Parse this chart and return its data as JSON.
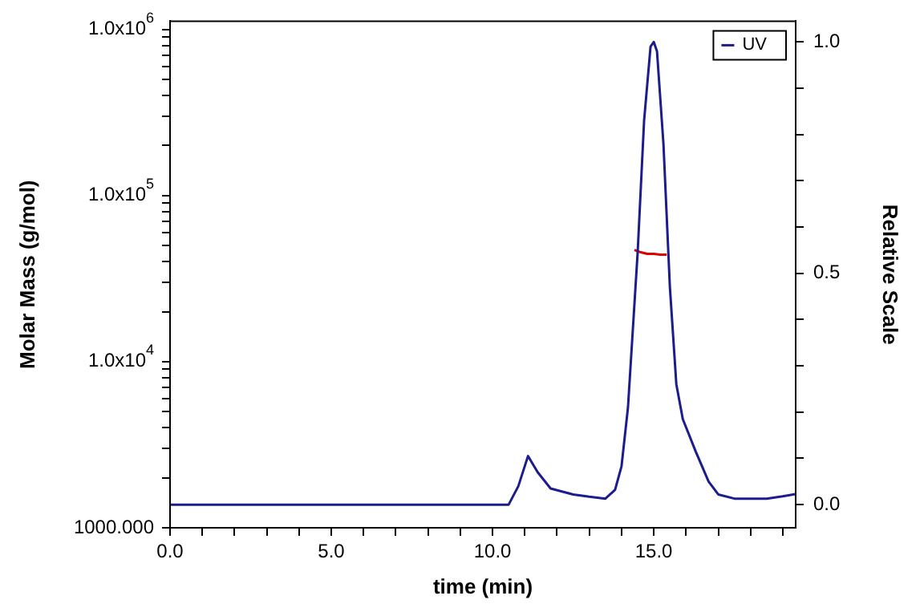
{
  "chart_data": {
    "type": "line",
    "xlabel": "time (min)",
    "ylabel": "Molar Mass (g/mol)",
    "y2label": "Relative Scale",
    "log": "y",
    "legend": "top right",
    "marker": "none",
    "grid": false,
    "line_style": "solid",
    "xlim": [
      0,
      19.4
    ],
    "xticks": [
      {
        "value": 0,
        "label": "0.0"
      },
      {
        "value": 1,
        "label": null
      },
      {
        "value": 2,
        "label": null
      },
      {
        "value": 3,
        "label": null
      },
      {
        "value": 4,
        "label": null
      },
      {
        "value": 5,
        "label": "5.0"
      },
      {
        "value": 6,
        "label": null
      },
      {
        "value": 7,
        "label": null
      },
      {
        "value": 8,
        "label": null
      },
      {
        "value": 9,
        "label": null
      },
      {
        "value": 10,
        "label": "10.0"
      },
      {
        "value": 11,
        "label": null
      },
      {
        "value": 12,
        "label": null
      },
      {
        "value": 13,
        "label": null
      },
      {
        "value": 14,
        "label": null
      },
      {
        "value": 15,
        "label": "15.0"
      },
      {
        "value": 16,
        "label": null
      },
      {
        "value": 17,
        "label": null
      },
      {
        "value": 18,
        "label": null
      },
      {
        "value": 19,
        "label": null
      }
    ],
    "ylim": [
      1000,
      1120000
    ],
    "yticks": [
      {
        "value": 1000,
        "label": "1000.000"
      },
      {
        "value": 2000,
        "label": null
      },
      {
        "value": 3000,
        "label": null
      },
      {
        "value": 4000,
        "label": null
      },
      {
        "value": 5000,
        "label": null
      },
      {
        "value": 6000,
        "label": null
      },
      {
        "value": 7000,
        "label": null
      },
      {
        "value": 8000,
        "label": null
      },
      {
        "value": 9000,
        "label": null
      },
      {
        "value": 10000,
        "label": "1.0x10$^{4}$"
      },
      {
        "value": 20000,
        "label": null
      },
      {
        "value": 30000,
        "label": null
      },
      {
        "value": 40000,
        "label": null
      },
      {
        "value": 50000,
        "label": null
      },
      {
        "value": 60000,
        "label": null
      },
      {
        "value": 70000,
        "label": null
      },
      {
        "value": 80000,
        "label": null
      },
      {
        "value": 90000,
        "label": null
      },
      {
        "value": 100000,
        "label": "1.0x10$^{5}$"
      },
      {
        "value": 200000,
        "label": null
      },
      {
        "value": 300000,
        "label": null
      },
      {
        "value": 400000,
        "label": null
      },
      {
        "value": 500000,
        "label": null
      },
      {
        "value": 600000,
        "label": null
      },
      {
        "value": 700000,
        "label": null
      },
      {
        "value": 800000,
        "label": null
      },
      {
        "value": 900000,
        "label": null
      },
      {
        "value": 1000000,
        "label": "1.0x10$^{6}$"
      }
    ],
    "y2lim": [
      -0.05,
      1.045
    ],
    "y2ticks": [
      {
        "value": 0,
        "label": "0.0"
      },
      {
        "value": 0.1,
        "label": null
      },
      {
        "value": 0.2,
        "label": null
      },
      {
        "value": 0.3,
        "label": null
      },
      {
        "value": 0.4,
        "label": null
      },
      {
        "value": 0.5,
        "label": "0.5"
      },
      {
        "value": 0.6,
        "label": null
      },
      {
        "value": 0.7,
        "label": null
      },
      {
        "value": 0.8,
        "label": null
      },
      {
        "value": 0.9,
        "label": null
      },
      {
        "value": 1,
        "label": "1.0"
      }
    ],
    "series": [
      {
        "name": "UV",
        "color": "#1c1c8c",
        "axis": "y2",
        "x": [
          0,
          10.5,
          10.8,
          11.1,
          11.4,
          11.8,
          12.5,
          13,
          13.5,
          13.8,
          14,
          14.2,
          14.5,
          14.7,
          14.9,
          15,
          15.1,
          15.3,
          15.5,
          15.7,
          15.9,
          16.3,
          16.7,
          17,
          17.5,
          18.5,
          19,
          19.4
        ],
        "values": [
          0,
          0,
          0.04,
          0.105,
          0.07,
          0.035,
          0.022,
          0.017,
          0.013,
          0.032,
          0.083,
          0.21,
          0.545,
          0.83,
          0.99,
          1,
          0.98,
          0.78,
          0.47,
          0.26,
          0.185,
          0.115,
          0.05,
          0.022,
          0.013,
          0.013,
          0.018,
          0.023
        ]
      },
      {
        "color": "#dd0000",
        "axis": "y",
        "x": [
          14.4,
          14.6,
          14.8,
          15,
          15.2,
          15.4
        ],
        "values": [
          47000,
          45500,
          44500,
          44500,
          44000,
          44000
        ]
      }
    ]
  }
}
